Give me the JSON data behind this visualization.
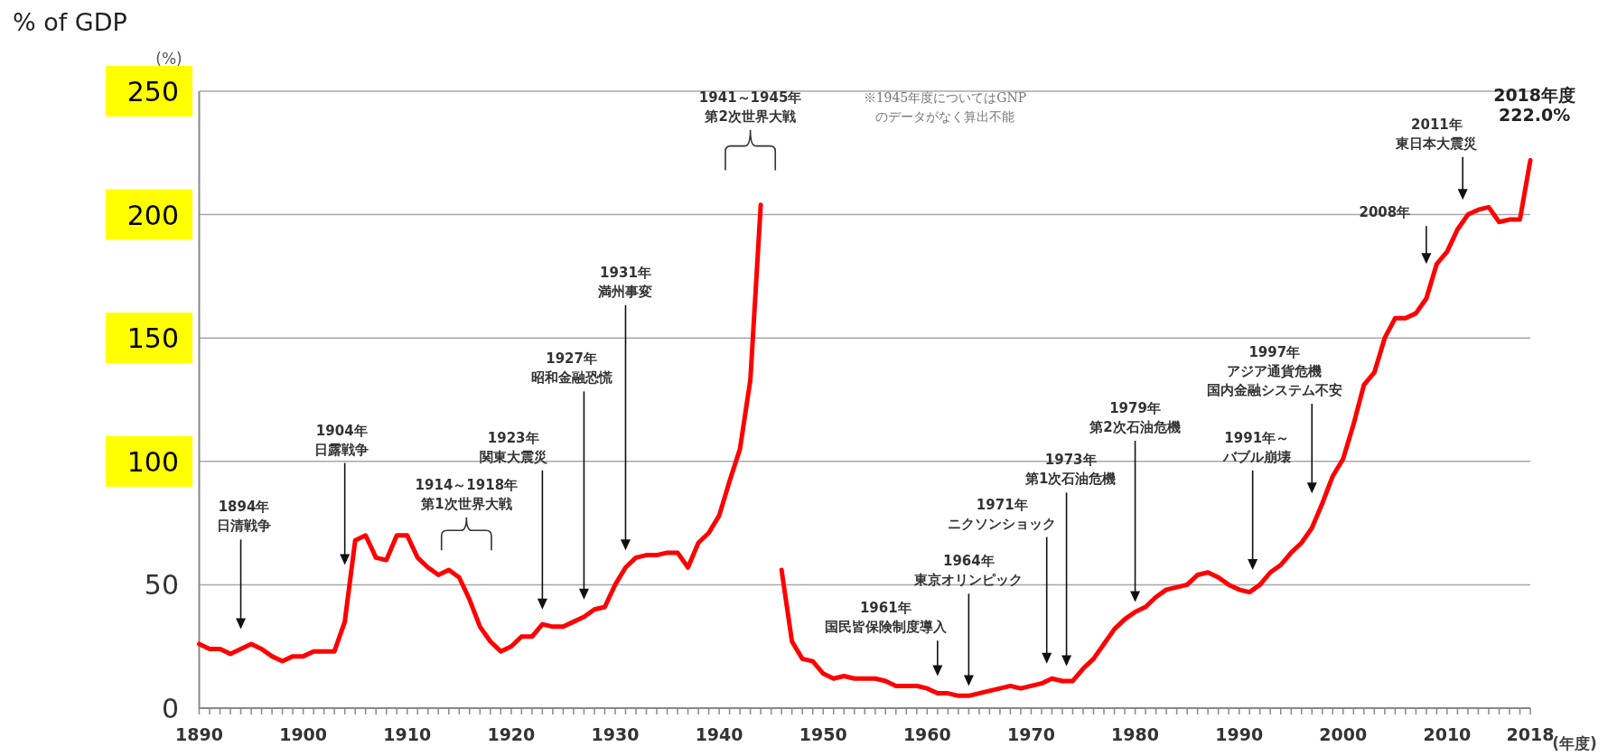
{
  "chart_data": {
    "type": "line",
    "title": "% of GDP",
    "ylabel": "(%)",
    "xlabel": "(年度)",
    "xlim": [
      1890,
      2018
    ],
    "ylim": [
      0,
      250
    ],
    "xticks": [
      1890,
      1900,
      1910,
      1920,
      1930,
      1940,
      1950,
      1960,
      1970,
      1980,
      1990,
      2000,
      2010,
      2018
    ],
    "yticks": [
      0,
      50,
      100,
      150,
      200,
      250
    ],
    "grid": "y",
    "series": [
      {
        "color": "#ff0000",
        "x": [
          1890,
          1891,
          1892,
          1893,
          1894,
          1895,
          1896,
          1897,
          1898,
          1899,
          1900,
          1901,
          1902,
          1903,
          1904,
          1905,
          1906,
          1907,
          1908,
          1909,
          1910,
          1911,
          1912,
          1913,
          1914,
          1915,
          1916,
          1917,
          1918,
          1919,
          1920,
          1921,
          1922,
          1923,
          1924,
          1925,
          1926,
          1927,
          1928,
          1929,
          1930,
          1931,
          1932,
          1933,
          1934,
          1935,
          1936,
          1937,
          1938,
          1939,
          1940,
          1941,
          1942,
          1943,
          1944
        ],
        "values": [
          26,
          24,
          24,
          22,
          24,
          26,
          24,
          21,
          19,
          21,
          21,
          23,
          23,
          23,
          35,
          68,
          70,
          61,
          60,
          70,
          70,
          61,
          57,
          54,
          56,
          53,
          44,
          33,
          27,
          23,
          25,
          29,
          29,
          34,
          33,
          33,
          35,
          37,
          40,
          41,
          50,
          57,
          61,
          62,
          62,
          63,
          63,
          57,
          67,
          71,
          78,
          92,
          105,
          133,
          204
        ]
      },
      {
        "color": "#ff0000",
        "x": [
          1946,
          1947,
          1948,
          1949,
          1950,
          1951,
          1952,
          1953,
          1954,
          1955,
          1956,
          1957,
          1958,
          1959,
          1960,
          1961,
          1962,
          1963,
          1964,
          1965,
          1966,
          1967,
          1968,
          1969,
          1970,
          1971,
          1972,
          1973,
          1974,
          1975,
          1976,
          1977,
          1978,
          1979,
          1980,
          1981,
          1982,
          1983,
          1984,
          1985,
          1986,
          1987,
          1988,
          1989,
          1990,
          1991,
          1992,
          1993,
          1994,
          1995,
          1996,
          1997,
          1998,
          1999,
          2000,
          2001,
          2002,
          2003,
          2004,
          2005,
          2006,
          2007,
          2008,
          2009,
          2010,
          2011,
          2012,
          2013,
          2014,
          2015,
          2016,
          2017,
          2018
        ],
        "values": [
          56,
          27,
          20,
          19,
          14,
          12,
          13,
          12,
          12,
          12,
          11,
          9,
          9,
          9,
          8,
          6,
          6,
          5,
          5,
          6,
          7,
          8,
          9,
          8,
          9,
          10,
          12,
          11,
          11,
          16,
          20,
          26,
          32,
          36,
          39,
          41,
          45,
          48,
          49,
          50,
          54,
          55,
          53,
          50,
          48,
          47,
          50,
          55,
          58,
          63,
          67,
          73,
          83,
          94,
          101,
          115,
          131,
          136,
          150,
          158,
          158,
          160,
          166,
          180,
          185,
          194,
          200,
          202,
          203,
          197,
          198,
          198,
          222.0
        ]
      }
    ],
    "annotations": [
      "1894年日清戦争",
      "1904年日露戦争",
      "1914～1918年第1次世界大戦",
      "1923年関東大震災",
      "1927年昭和金融恐慌",
      "1931年満州事変",
      "1941～1945年第2次世界大戦",
      "※1945年度についてはGNPのデータがなく算出不能",
      "1961年国民皆保険制度導入",
      "1964年東京オリンピック",
      "1971年ニクソンショック",
      "1973年第1次石油危機",
      "1979年第2次石油危機",
      "1991年～バブル崩壊",
      "1997年アジア通貨危機国内金融システム不安",
      "2008年",
      "2011年東日本大震災",
      "2018年度222.0%"
    ]
  }
}
